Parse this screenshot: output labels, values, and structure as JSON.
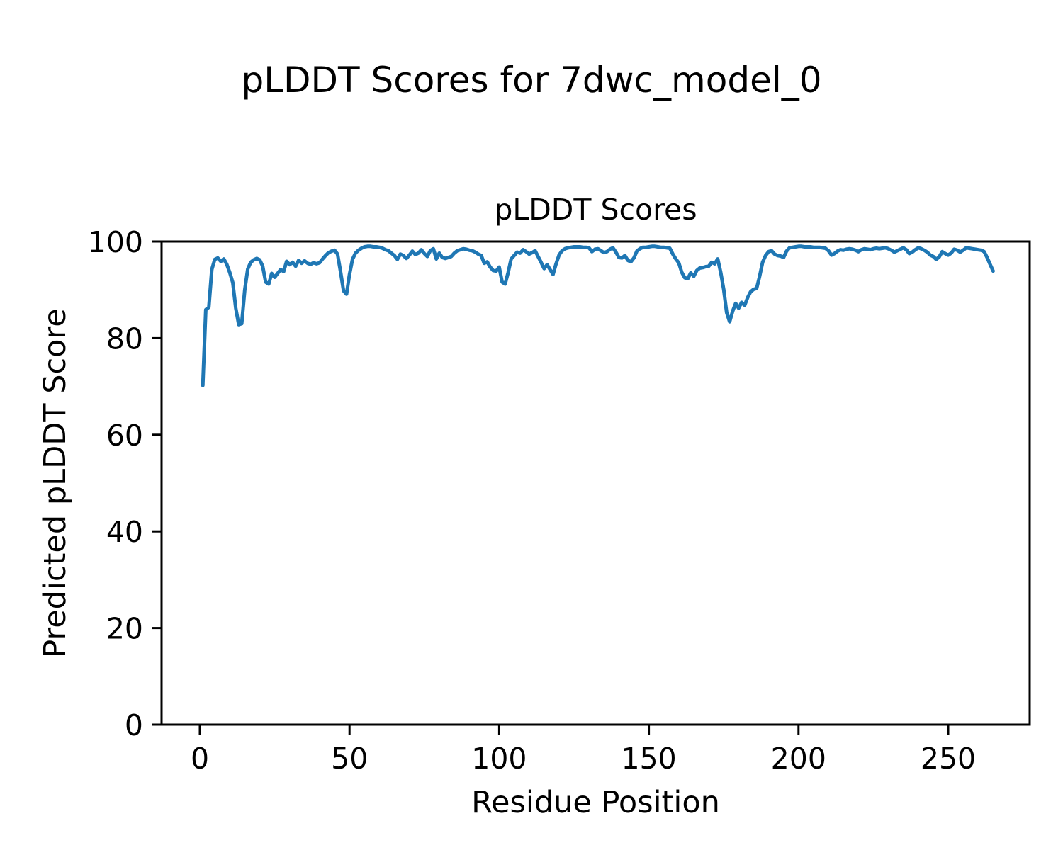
{
  "figure_title": "pLDDT Scores for 7dwc_model_0",
  "chart_data": {
    "type": "line",
    "title": "pLDDT Scores",
    "xlabel": "Residue Position",
    "ylabel": "Predicted pLDDT Score",
    "x_ticks": [
      0,
      50,
      100,
      150,
      200,
      250
    ],
    "y_ticks": [
      0,
      20,
      40,
      60,
      80,
      100
    ],
    "ylim": [
      0,
      100
    ],
    "xlim": [
      -12.8,
      277.2
    ],
    "grid": false,
    "legend": "none",
    "line_color": "#1f77b4",
    "series_name": "pLDDT",
    "x_start": 1,
    "x_step": 1,
    "x_range": [
      1,
      265
    ],
    "values": [
      70.2,
      85.9,
      86.4,
      94.2,
      96.3,
      96.6,
      95.9,
      96.4,
      95.3,
      93.6,
      91.5,
      86.2,
      82.8,
      83.0,
      90.0,
      94.3,
      95.7,
      96.2,
      96.5,
      96.2,
      94.9,
      91.6,
      91.2,
      93.4,
      92.6,
      93.4,
      94.2,
      93.8,
      95.9,
      95.2,
      95.7,
      94.9,
      96.1,
      95.5,
      96.0,
      95.5,
      95.3,
      95.6,
      95.4,
      95.6,
      96.4,
      97.1,
      97.7,
      98.0,
      98.2,
      97.4,
      93.8,
      89.8,
      89.1,
      93.2,
      96.3,
      97.6,
      98.2,
      98.6,
      98.9,
      99.0,
      99.0,
      98.9,
      98.9,
      98.8,
      98.6,
      98.3,
      98.1,
      97.6,
      97.1,
      96.3,
      97.4,
      97.1,
      96.5,
      97.2,
      98.0,
      97.3,
      97.6,
      98.3,
      97.5,
      96.9,
      98.1,
      98.5,
      96.4,
      97.6,
      96.7,
      96.5,
      96.7,
      96.9,
      97.6,
      98.1,
      98.3,
      98.5,
      98.4,
      98.2,
      98.1,
      97.8,
      97.4,
      97.1,
      95.5,
      95.8,
      94.7,
      94.0,
      93.9,
      94.7,
      91.6,
      91.2,
      93.6,
      96.4,
      97.1,
      97.8,
      97.6,
      98.3,
      97.9,
      97.4,
      97.7,
      98.1,
      96.9,
      95.7,
      94.4,
      95.2,
      94.2,
      93.2,
      95.4,
      97.2,
      98.1,
      98.5,
      98.7,
      98.8,
      98.9,
      98.9,
      98.9,
      98.8,
      98.8,
      98.7,
      97.9,
      98.4,
      98.5,
      98.1,
      97.7,
      97.9,
      98.4,
      98.7,
      97.8,
      96.7,
      96.6,
      97.1,
      96.1,
      95.8,
      96.6,
      98.0,
      98.5,
      98.8,
      98.8,
      98.9,
      99.0,
      99.0,
      98.9,
      98.8,
      98.8,
      98.7,
      98.6,
      97.4,
      96.4,
      95.6,
      93.6,
      92.5,
      92.3,
      93.5,
      92.8,
      94.0,
      94.5,
      94.6,
      94.8,
      94.9,
      95.7,
      95.4,
      96.4,
      93.6,
      90.1,
      85.3,
      83.4,
      85.6,
      87.2,
      86.2,
      87.4,
      86.8,
      88.4,
      89.6,
      90.1,
      90.3,
      92.8,
      95.7,
      97.1,
      97.9,
      98.1,
      97.4,
      97.1,
      97.0,
      96.7,
      98.0,
      98.7,
      98.8,
      98.9,
      99.0,
      99.0,
      98.9,
      98.9,
      98.9,
      98.8,
      98.8,
      98.8,
      98.7,
      98.6,
      98.1,
      97.2,
      97.5,
      98.0,
      98.3,
      98.2,
      98.4,
      98.5,
      98.4,
      98.2,
      97.9,
      98.3,
      98.5,
      98.4,
      98.3,
      98.5,
      98.6,
      98.5,
      98.6,
      98.7,
      98.5,
      98.2,
      97.8,
      98.1,
      98.4,
      98.7,
      98.3,
      97.5,
      97.8,
      98.3,
      98.7,
      98.5,
      98.2,
      97.8,
      97.2,
      96.9,
      96.3,
      96.8,
      97.9,
      97.5,
      97.2,
      97.6,
      98.4,
      98.2,
      97.8,
      98.2,
      98.7,
      98.6,
      98.5,
      98.4,
      98.3,
      98.2,
      97.9,
      96.7,
      95.3,
      93.9
    ]
  }
}
